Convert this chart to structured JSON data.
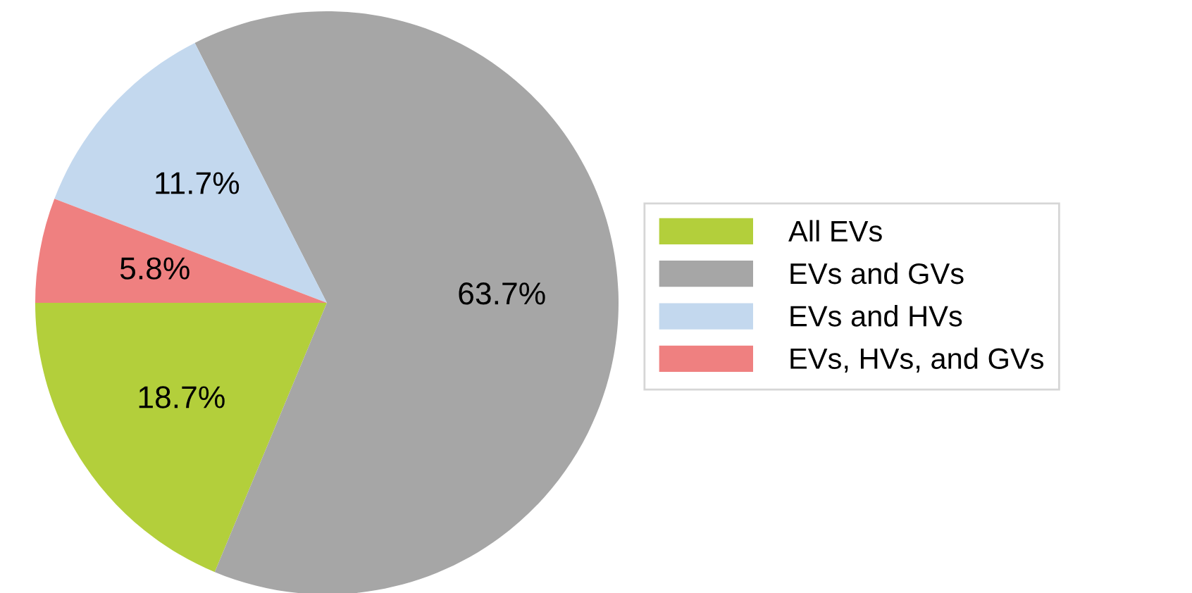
{
  "chart_data": {
    "type": "pie",
    "categories": [
      "All EVs",
      "EVs and GVs",
      "EVs and HVs",
      "EVs, HVs, and GVs"
    ],
    "values": [
      18.7,
      63.7,
      11.7,
      5.8
    ],
    "colors": [
      "#b3cf3b",
      "#a6a6a6",
      "#c3d8ee",
      "#ef8080"
    ],
    "value_labels": [
      "18.7%",
      "63.7%",
      "11.7%",
      "5.8%"
    ],
    "legend": "right"
  }
}
